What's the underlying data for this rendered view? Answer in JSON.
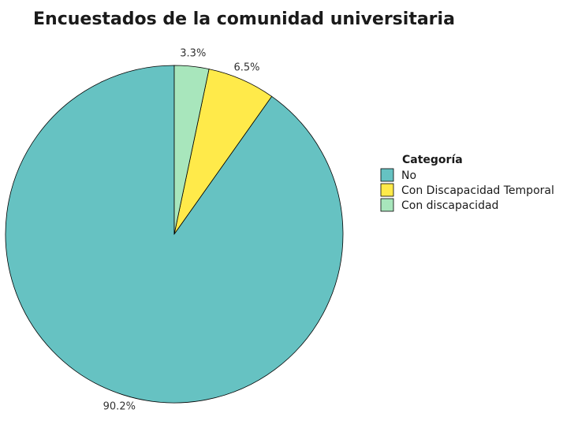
{
  "chart_data": {
    "type": "pie",
    "title": "Encuestados de la comunidad universitaria",
    "legend_title": "Categoría",
    "legend_position": "right",
    "start_direction": "top",
    "rotation": "counterclockwise",
    "slices": [
      {
        "label": "No",
        "value": 90.2,
        "value_label": "90.2%",
        "color": "#66C2C2"
      },
      {
        "label": "Con Discapacidad Temporal",
        "value": 6.5,
        "value_label": "6.5%",
        "color": "#FFEA4A"
      },
      {
        "label": "Con discapacidad",
        "value": 3.3,
        "value_label": "3.3%",
        "color": "#A8E6BC"
      }
    ]
  }
}
